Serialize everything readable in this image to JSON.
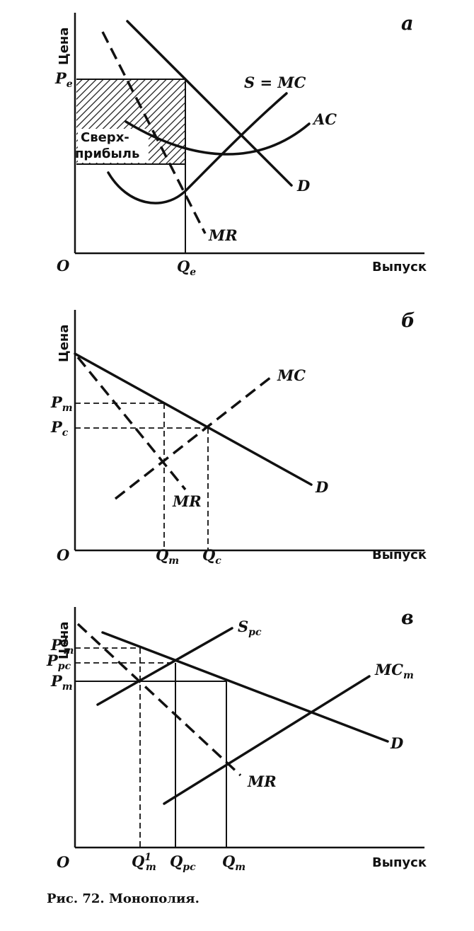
{
  "panels": [
    {
      "letter": "а",
      "y_axis": "Цена",
      "x_axis": "Выпуск",
      "origin": "O",
      "p_e": "P",
      "p_e_sub": "e",
      "q_e": "Q",
      "q_e_sub": "e",
      "s_mc": "S = MC",
      "ac": "AC",
      "d": "D",
      "mr": "MR",
      "profit_line1": "Сверх-",
      "profit_line2": "прибыль"
    },
    {
      "letter": "б",
      "y_axis": "Цена",
      "x_axis": "Выпуск",
      "origin": "O",
      "p_m": "P",
      "p_m_sub": "m",
      "p_c": "P",
      "p_c_sub": "c",
      "q_m": "Q",
      "q_m_sub": "m",
      "q_c": "Q",
      "q_c_sub": "c",
      "mc": "MC",
      "d": "D",
      "mr": "MR"
    },
    {
      "letter": "в",
      "y_axis": "Цена",
      "x_axis": "Выпуск",
      "origin": "O",
      "p_m1": "P",
      "p_m1_sub": "m",
      "p_m1_sup": "1",
      "p_pc": "P",
      "p_pc_sub": "pc",
      "p_m": "P",
      "p_m_sub": "m",
      "q_m1": "Q",
      "q_m1_sub": "m",
      "q_m1_sup": "1",
      "q_pc": "Q",
      "q_pc_sub": "pc",
      "q_m": "Q",
      "q_m_sub": "m",
      "s_pc": "S",
      "s_pc_sub": "pc",
      "mc_m": "MC",
      "mc_m_sub": "m",
      "d": "D",
      "mr": "MR"
    }
  ],
  "caption": "Рис. 72. Монополия."
}
